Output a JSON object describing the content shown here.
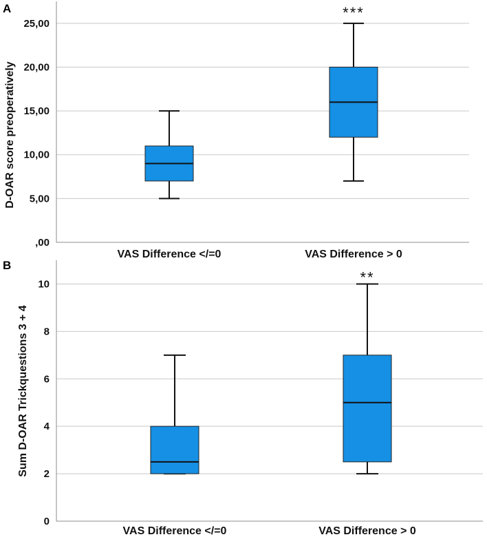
{
  "chart_data": [
    {
      "panel": "A",
      "type": "box",
      "ylabel": "D-OAR score preoperatively",
      "ylim": [
        0,
        27.5
      ],
      "yticks": [
        0,
        5,
        10,
        15,
        20,
        25
      ],
      "ytick_labels": [
        ",00",
        "5,00",
        "10,00",
        "15,00",
        "20,00",
        "25,00"
      ],
      "categories": [
        "VAS Difference </=0",
        "VAS Difference > 0"
      ],
      "boxes": [
        {
          "min": 5,
          "q1": 7,
          "median": 9,
          "q3": 11,
          "max": 15,
          "annotation": ""
        },
        {
          "min": 7,
          "q1": 12,
          "median": 16,
          "q3": 20,
          "max": 25,
          "annotation": "***"
        }
      ],
      "box_color": "#1590e4"
    },
    {
      "panel": "B",
      "type": "box",
      "ylabel": "Sum D-OAR Trickquestions 3 + 4",
      "ylim": [
        0,
        11
      ],
      "yticks": [
        0,
        2,
        4,
        6,
        8,
        10
      ],
      "ytick_labels": [
        "0",
        "2",
        "4",
        "6",
        "8",
        "10"
      ],
      "categories": [
        "VAS Difference </=0",
        "VAS Difference > 0"
      ],
      "boxes": [
        {
          "min": 2,
          "q1": 2,
          "median": 2.5,
          "q3": 4,
          "max": 7,
          "annotation": ""
        },
        {
          "min": 2,
          "q1": 2.5,
          "median": 5,
          "q3": 7,
          "max": 10,
          "annotation": "**"
        }
      ],
      "box_color": "#1590e4"
    }
  ]
}
